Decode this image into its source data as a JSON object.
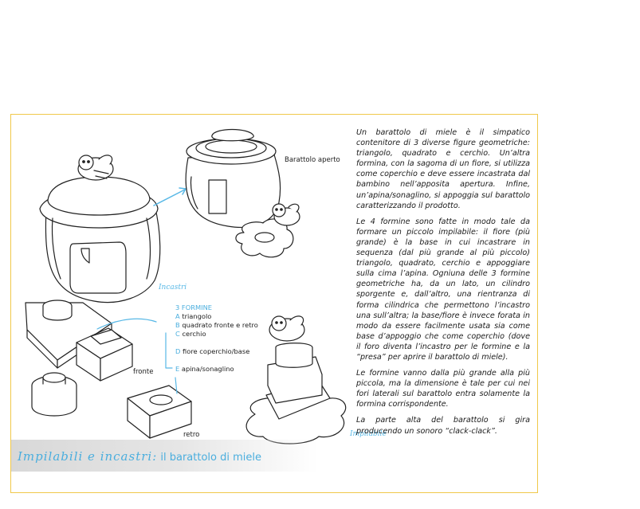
{
  "labels": {
    "barattolo_aperto": "Barattolo aperto",
    "incastri": "Incastri",
    "impilabile": "Impilabile",
    "fronte": "fronte",
    "retro": "retro"
  },
  "legend": {
    "title": "3 FORMINE",
    "items": [
      {
        "letter": "A",
        "text": "triangolo"
      },
      {
        "letter": "B",
        "text": "quadrato fronte e retro"
      },
      {
        "letter": "C",
        "text": "cerchio"
      },
      {
        "letter": "D",
        "text": "fiore coperchio/base"
      },
      {
        "letter": "E",
        "text": "apina/sonaglino"
      }
    ]
  },
  "paragraphs": [
    "Un barattolo di miele è il simpatico contenitore di 3 diverse figure geometriche: triangolo, quadrato e cerchio. Un’altra formina, con la sagoma di un fiore, si utilizza come coperchio e deve essere incastrata dal bambino nell’apposita apertura. Infine, un’apina/sonaglino, si appoggia sul barattolo caratterizzando il prodotto.",
    "Le 4 formine sono fatte in modo tale da formare un piccolo impilabile: il fiore (più grande) è la base in cui incastrare in sequenza (dal più grande al più piccolo) triangolo, quadrato, cerchio e appoggiare sulla cima l’apina. Ogniuna delle 3 formine geometriche ha, da un lato, un cilindro sporgente e, dall’altro, una rientranza di forma cilindrica che permettono l’incastro una sull’altra; la base/fiore è invece forata in modo da essere facilmente usata sia come base d’appoggio che come coperchio (dove il foro diventa l’incastro per le formine e la “presa” per aprire il barattolo di miele).",
    "Le formine vanno dalla più grande alla più piccola, ma la dimensione è tale per cui nei fori laterali sul barattolo entra solamente la formina corrispondente.",
    "La parte alta del barattolo si gira producendo un sonoro “clack-clack”."
  ],
  "banner": {
    "script": "Impilabili e incastri:",
    "text": " il barattolo di miele"
  },
  "colors": {
    "accent_blue": "#4aaede",
    "frame_yellow": "#f0c84a",
    "banner_gray": "#dcdcdc"
  }
}
